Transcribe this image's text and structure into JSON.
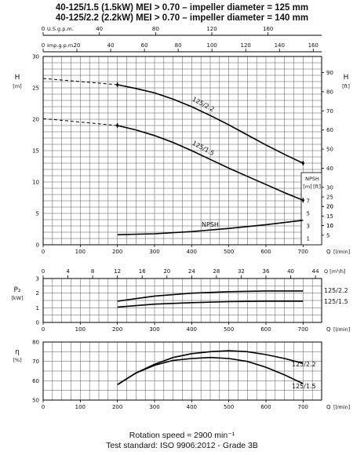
{
  "header": {
    "line1": "40-125/1.5 (1.5kW) MEI > 0.70 – impeller diameter = 125 mm",
    "line2": "40-125/2.2 (2.2kW) MEI > 0.70 – impeller diameter = 140 mm"
  },
  "footer": {
    "rotation": "Rotation speed ≈ 2900 min⁻¹",
    "standard": "Test standard: ISO 9906:2012 - Grade 3B"
  },
  "chart_data": [
    {
      "type": "line",
      "name": "head",
      "ylabel": "H",
      "ylabel_unit": "[m]",
      "ylabel_right": "H",
      "ylabel_right_unit": "[ft]",
      "xlabel": "Q",
      "xlabel_unit": "[l/min]",
      "xlim": [
        0,
        750
      ],
      "ylim": [
        0,
        30
      ],
      "x_ticks": [
        0,
        100,
        200,
        300,
        400,
        500,
        600,
        700
      ],
      "y_ticks": [
        0,
        5,
        10,
        15,
        20,
        25,
        30
      ],
      "y_ticks_right": [
        10,
        20,
        30,
        40,
        50,
        60,
        70,
        80,
        90
      ],
      "top_axis_usgpm": {
        "label": "U.S.g.p.m.",
        "ticks": [
          0,
          40,
          80,
          120,
          160,
          200
        ]
      },
      "top_axis_impgpm": {
        "label": "Imp.g.p.m.",
        "ticks": [
          0,
          20,
          40,
          60,
          80,
          100,
          120,
          140,
          160
        ]
      },
      "series": [
        {
          "name": "125/2.2",
          "dashed_x": [
            0,
            200
          ],
          "dashed_y": [
            26.5,
            25.5
          ],
          "x": [
            200,
            250,
            300,
            350,
            400,
            450,
            500,
            550,
            600,
            650,
            700
          ],
          "y": [
            25.5,
            24.9,
            24.2,
            23.2,
            22.0,
            20.6,
            19.1,
            17.5,
            15.9,
            14.4,
            13.0
          ]
        },
        {
          "name": "125/1.5",
          "dashed_x": [
            0,
            200
          ],
          "dashed_y": [
            20.1,
            19.0
          ],
          "x": [
            200,
            250,
            300,
            350,
            400,
            450,
            500,
            550,
            600,
            650,
            700
          ],
          "y": [
            19.0,
            18.3,
            17.4,
            16.3,
            15.0,
            13.6,
            12.2,
            10.9,
            9.6,
            8.3,
            7.1
          ]
        },
        {
          "name": "NPSH",
          "x": [
            200,
            300,
            400,
            500,
            600,
            700
          ],
          "y": [
            1.6,
            1.75,
            2.1,
            2.6,
            3.2,
            3.9
          ]
        }
      ],
      "npsh_axis": {
        "label": "NPSH",
        "unit_m": "[m]",
        "unit_ft": "[ft]",
        "ticks_m": [
          1,
          3,
          5,
          7
        ],
        "ticks_ft": [
          5,
          10,
          15,
          20,
          25
        ]
      }
    },
    {
      "type": "line",
      "name": "power",
      "ylabel": "P₂",
      "ylabel_unit": "[kW]",
      "top_axis_m3h": {
        "label": "Q [m³/h]",
        "ticks": [
          0,
          4,
          8,
          12,
          16,
          20,
          24,
          28,
          32,
          36,
          40,
          44
        ]
      },
      "xlabel": "Q",
      "xlabel_unit": "[l/min]",
      "xlim": [
        0,
        750
      ],
      "ylim": [
        0,
        3
      ],
      "x_ticks": [
        0,
        100,
        200,
        300,
        400,
        500,
        600,
        700
      ],
      "y_ticks": [
        0,
        1,
        2,
        3
      ],
      "series": [
        {
          "name": "125/2.2",
          "x": [
            200,
            300,
            400,
            500,
            600,
            700
          ],
          "y": [
            1.45,
            1.8,
            2.0,
            2.1,
            2.15,
            2.15
          ]
        },
        {
          "name": "125/1.5",
          "x": [
            200,
            300,
            400,
            500,
            600,
            700
          ],
          "y": [
            1.05,
            1.25,
            1.35,
            1.42,
            1.45,
            1.45
          ]
        }
      ]
    },
    {
      "type": "line",
      "name": "efficiency",
      "ylabel": "η",
      "ylabel_unit": "[%]",
      "xlabel": "Q",
      "xlabel_unit": "[l/min]",
      "xlim": [
        0,
        750
      ],
      "ylim": [
        50,
        80
      ],
      "x_ticks": [
        0,
        100,
        200,
        300,
        400,
        500,
        600,
        700
      ],
      "y_ticks": [
        50,
        60,
        70,
        80
      ],
      "series": [
        {
          "name": "125/2.2",
          "x": [
            200,
            250,
            300,
            350,
            400,
            450,
            500,
            550,
            600,
            650,
            700
          ],
          "y": [
            58,
            64,
            68.5,
            72,
            74,
            75,
            75.5,
            75,
            73.5,
            71.5,
            69
          ]
        },
        {
          "name": "125/1.5",
          "x": [
            200,
            250,
            300,
            350,
            400,
            450,
            500,
            550,
            600,
            650,
            700
          ],
          "y": [
            58,
            64,
            68,
            70.5,
            71.5,
            72,
            71.5,
            70,
            67,
            63,
            58.5
          ]
        }
      ]
    }
  ]
}
